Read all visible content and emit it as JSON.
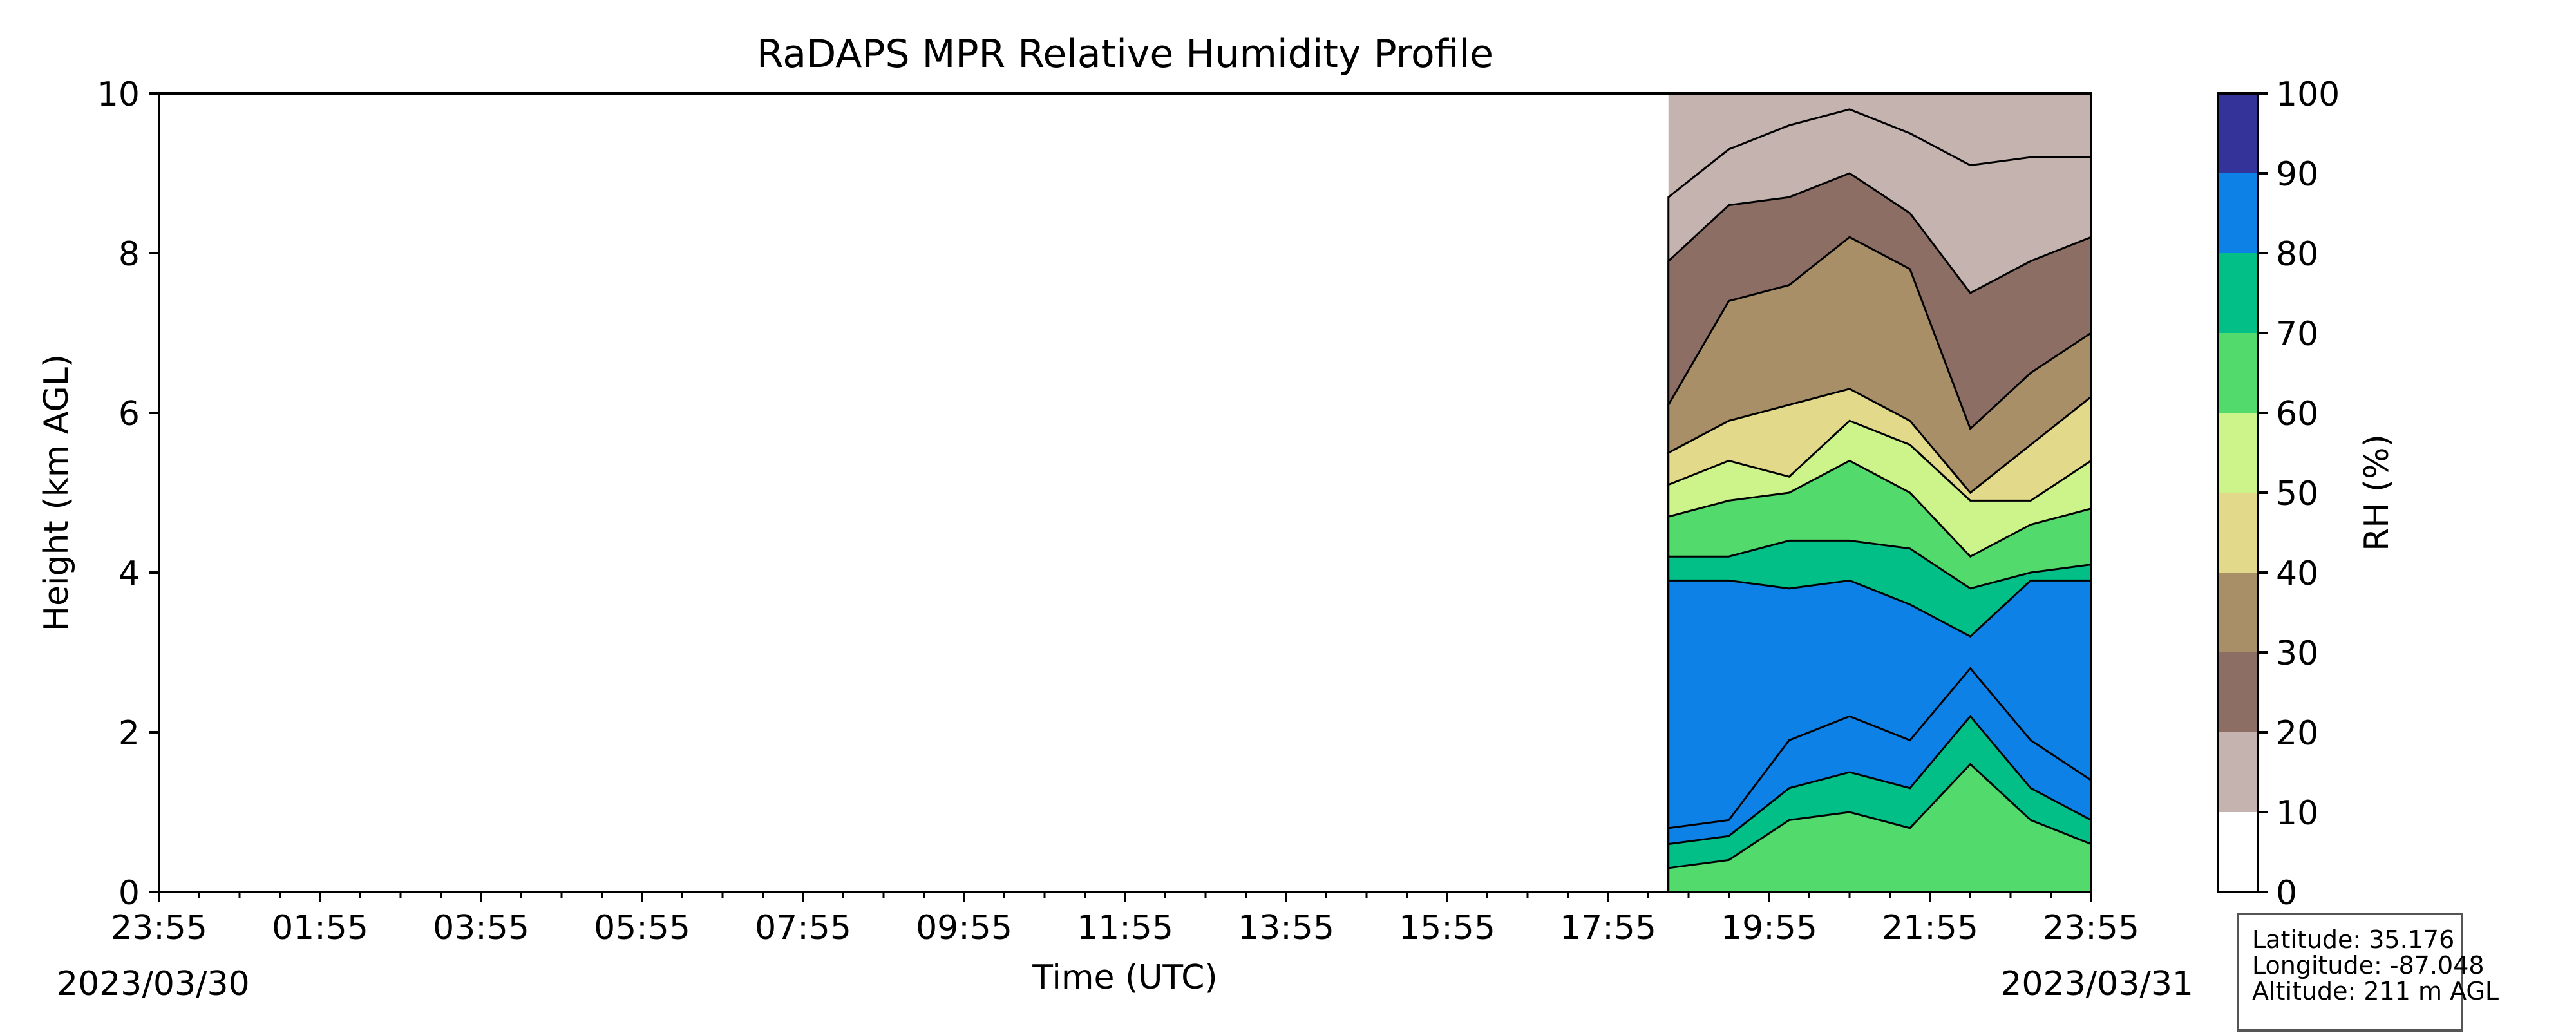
{
  "chart_data": {
    "type": "heatmap",
    "title": "RaDAPS MPR Relative Humidity Profile",
    "xlabel": "Time (UTC)",
    "ylabel": "Height (km AGL)",
    "colorbar_label": "RH (%)",
    "x_tick_labels": [
      "23:55",
      "01:55",
      "03:55",
      "05:55",
      "07:55",
      "09:55",
      "11:55",
      "13:55",
      "15:55",
      "17:55",
      "19:55",
      "21:55",
      "23:55"
    ],
    "x_range_hours": [
      0,
      24
    ],
    "date_start": "2023/03/30",
    "date_end": "2023/03/31",
    "ylim": [
      0,
      10
    ],
    "y_ticks": [
      0,
      2,
      4,
      6,
      8,
      10
    ],
    "data_start_time": "18:40",
    "levels": [
      0,
      10,
      20,
      30,
      40,
      50,
      60,
      70,
      80,
      90,
      100
    ],
    "colors": [
      "#ffffff",
      "#c4b3af",
      "#8c6e65",
      "#a98f68",
      "#e2d98a",
      "#cdf48a",
      "#52da6c",
      "#02bf87",
      "#0d81e6",
      "#333399"
    ],
    "colormap": "terrain_r",
    "contour_upper_km": [
      {
        "level": 10,
        "values": [
          8.7,
          9.3,
          9.6,
          9.8,
          9.5,
          9.1,
          9.2,
          9.2
        ]
      },
      {
        "level": 20,
        "values": [
          7.9,
          8.6,
          8.7,
          9.0,
          8.5,
          7.5,
          7.9,
          8.2
        ]
      },
      {
        "level": 30,
        "values": [
          6.1,
          7.4,
          7.6,
          8.2,
          7.8,
          5.8,
          6.5,
          7.0
        ]
      },
      {
        "level": 40,
        "values": [
          5.5,
          5.9,
          6.1,
          6.3,
          5.9,
          5.0,
          5.6,
          6.2
        ]
      },
      {
        "level": 50,
        "values": [
          5.1,
          5.4,
          5.2,
          5.9,
          5.6,
          4.9,
          4.9,
          5.4
        ]
      },
      {
        "level": 60,
        "values": [
          4.7,
          4.9,
          5.0,
          5.4,
          5.0,
          4.2,
          4.6,
          4.8
        ]
      },
      {
        "level": 70,
        "values": [
          4.2,
          4.2,
          4.4,
          4.4,
          4.3,
          3.8,
          4.0,
          4.1
        ]
      },
      {
        "level": 80,
        "values": [
          3.9,
          3.9,
          3.8,
          3.9,
          3.6,
          3.2,
          3.9,
          3.9
        ]
      }
    ],
    "contour_lower_km": [
      {
        "level": 90,
        "values": [
          0.8,
          0.9,
          1.9,
          2.2,
          1.9,
          2.8,
          1.9,
          1.4
        ]
      },
      {
        "level": 80,
        "values": [
          0.6,
          0.7,
          1.3,
          1.5,
          1.3,
          2.2,
          1.3,
          0.9
        ]
      },
      {
        "level": 70,
        "values": [
          0.3,
          0.4,
          0.9,
          1.0,
          0.8,
          1.6,
          0.9,
          0.6
        ]
      }
    ],
    "grid": false,
    "colorbar_ticks": [
      0,
      10,
      20,
      30,
      40,
      50,
      60,
      70,
      80,
      90,
      100
    ]
  },
  "info": {
    "latitude": "Latitude: 35.176",
    "longitude": "Longitude: -87.048",
    "altitude": "Altitude: 211 m AGL"
  }
}
